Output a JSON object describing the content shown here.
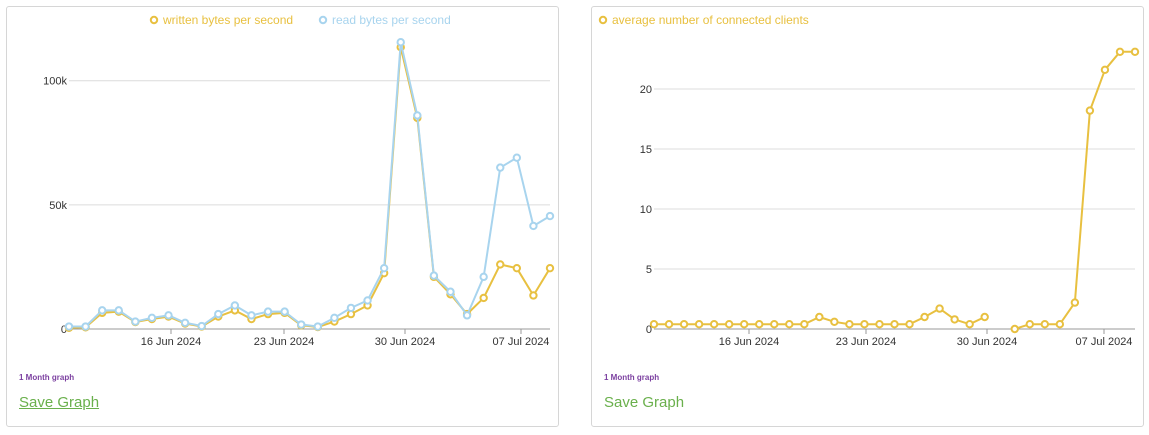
{
  "colors": {
    "written": "#e8c040",
    "read": "#a8d4ee",
    "clients": "#e8c040",
    "grid": "#dcdcdc",
    "caption": "#7b3fa0",
    "link": "#6ab04c"
  },
  "left_panel": {
    "caption": "1 Month graph",
    "save_label": "Save Graph"
  },
  "right_panel": {
    "caption": "1 Month graph",
    "save_label": "Save Graph"
  },
  "chart_data": [
    {
      "type": "line",
      "x_tick_labels": [
        "16 Jun 2024",
        "23 Jun 2024",
        "30 Jun 2024",
        "07 Jul 2024"
      ],
      "y_tick_labels": [
        "0",
        "50k",
        "100k"
      ],
      "y_ticks": [
        0,
        50000,
        100000
      ],
      "ylim": [
        0,
        116000
      ],
      "grid": true,
      "legend_position": "top-center",
      "series": [
        {
          "name": "written bytes per second",
          "color": "#e8c040",
          "values": [
            500,
            700,
            6500,
            7000,
            2800,
            4000,
            5000,
            2200,
            1000,
            5000,
            7500,
            4000,
            6000,
            6500,
            1500,
            800,
            3000,
            6000,
            9500,
            22500,
            113500,
            85000,
            21000,
            14000,
            6000,
            12500,
            26000,
            24500,
            13500,
            24500
          ]
        },
        {
          "name": "read bytes per second",
          "color": "#a8d4ee",
          "values": [
            1000,
            1000,
            7500,
            7500,
            3000,
            4500,
            5500,
            2500,
            1200,
            6000,
            9500,
            5500,
            7000,
            7000,
            1800,
            1000,
            4500,
            8500,
            11500,
            24500,
            115500,
            86000,
            21500,
            15000,
            5500,
            21000,
            65000,
            69000,
            41500,
            45500
          ]
        }
      ]
    },
    {
      "type": "line",
      "x_tick_labels": [
        "16 Jun 2024",
        "23 Jun 2024",
        "30 Jun 2024",
        "07 Jul 2024"
      ],
      "y_tick_labels": [
        "0",
        "5",
        "10",
        "15",
        "20"
      ],
      "y_ticks": [
        0,
        5,
        10,
        15,
        20
      ],
      "ylim": [
        0,
        24
      ],
      "grid": true,
      "legend_position": "top-left",
      "series": [
        {
          "name": "average number of connected clients",
          "color": "#e8c040",
          "values": [
            0.4,
            0.4,
            0.4,
            0.4,
            0.4,
            0.4,
            0.4,
            0.4,
            0.4,
            0.4,
            0.4,
            1.0,
            0.6,
            0.4,
            0.4,
            0.4,
            0.4,
            0.4,
            1.0,
            1.7,
            0.8,
            0.4,
            1.0,
            null,
            0.0,
            0.4,
            0.4,
            0.4,
            2.2,
            18.2,
            21.6,
            23.1,
            23.1
          ]
        }
      ]
    }
  ]
}
